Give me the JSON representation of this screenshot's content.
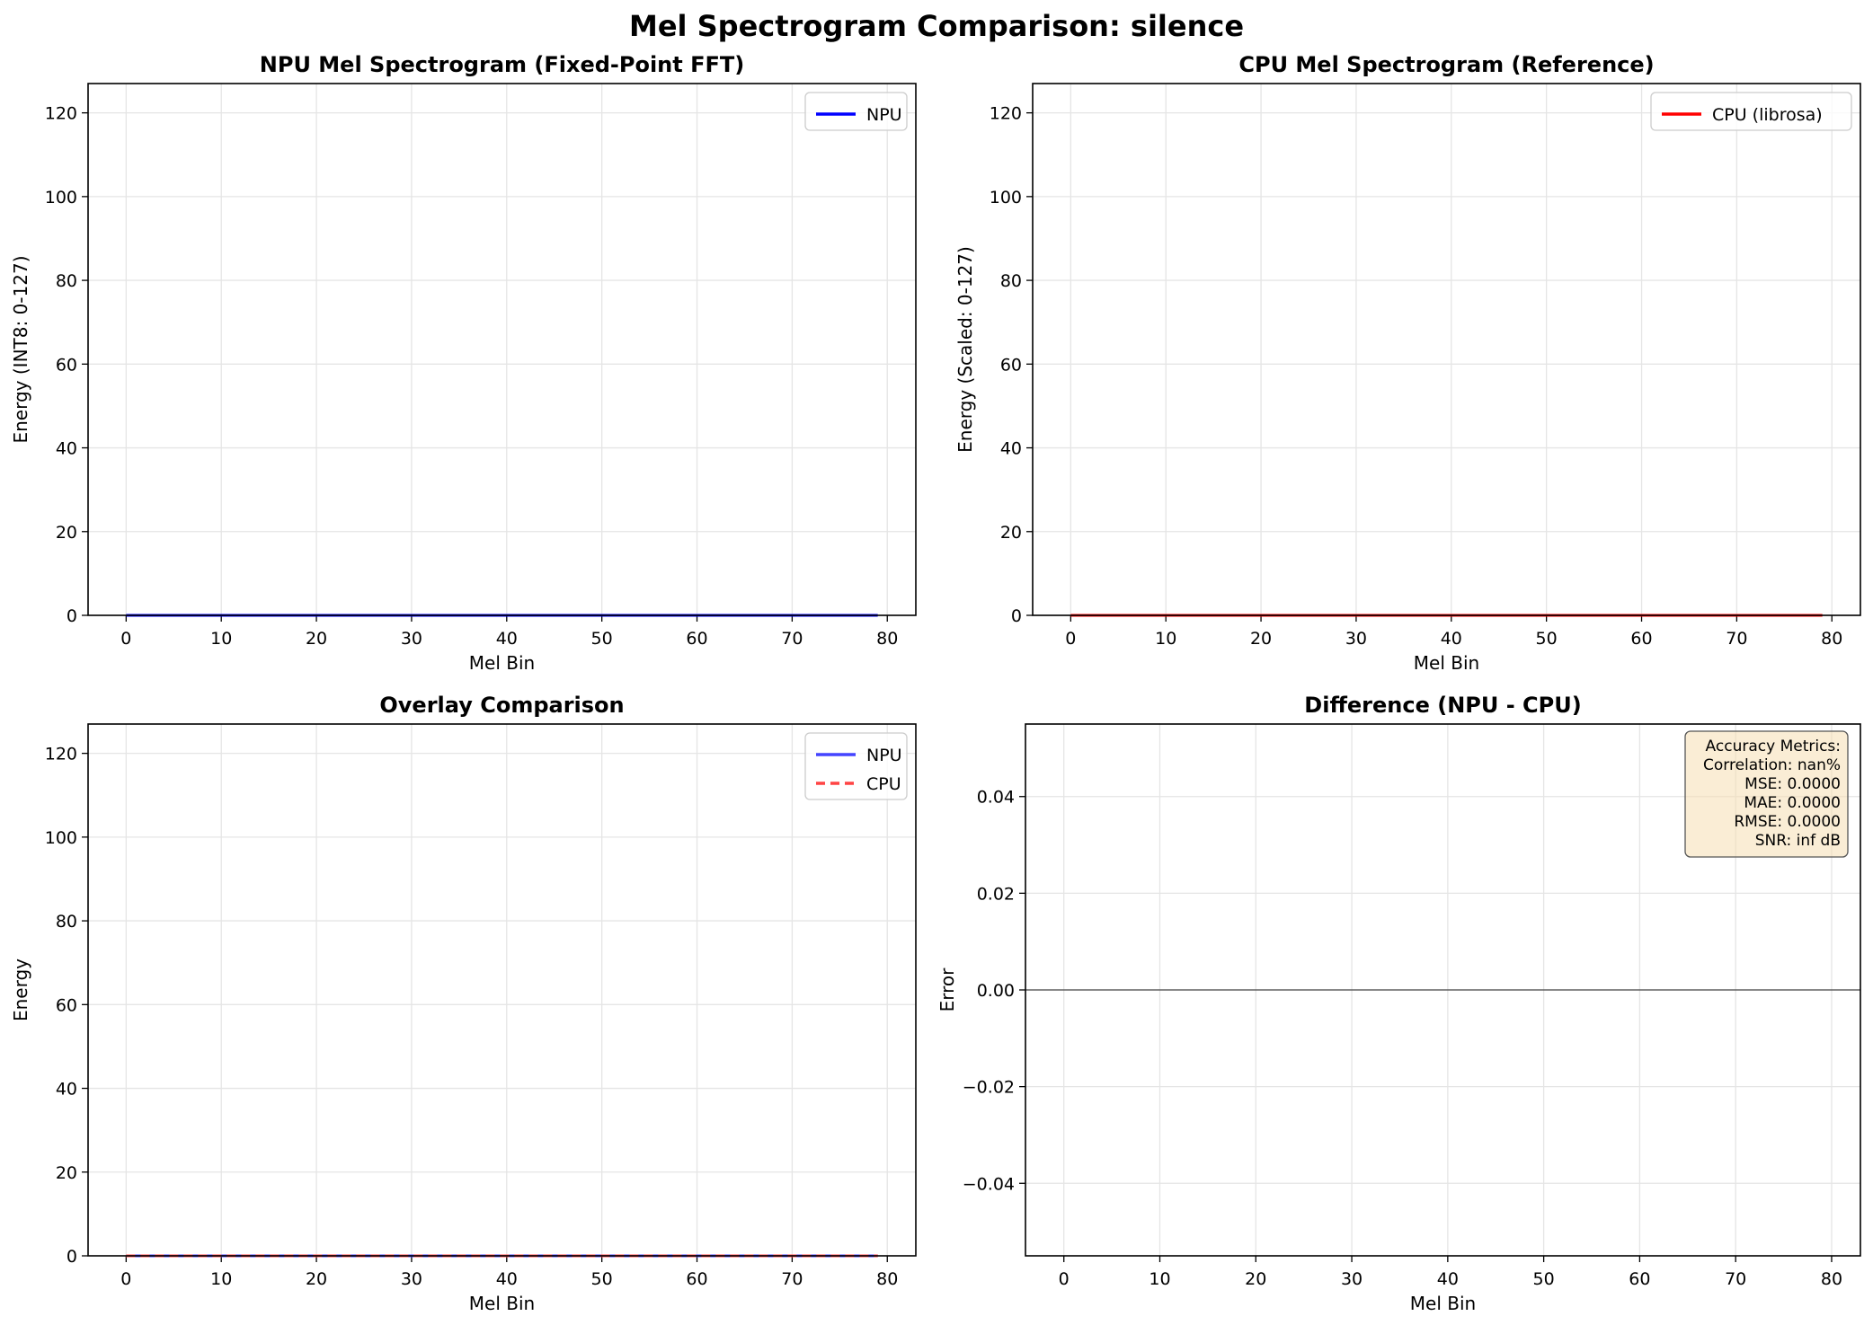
{
  "figure": {
    "suptitle": "Mel Spectrogram Comparison: silence"
  },
  "colors": {
    "npu": "#0000ff",
    "cpu": "#ff0000",
    "npu_overlay": "#4444ff",
    "cpu_overlay": "#ff4444",
    "grid": "#e5e5e5",
    "metrics_box_fill": "#f5deb3",
    "zero_line": "#000000"
  },
  "chart_data": [
    {
      "id": "npu",
      "type": "line",
      "title": "NPU Mel Spectrogram (Fixed-Point FFT)",
      "xlabel": "Mel Bin",
      "ylabel": "Energy (INT8: 0-127)",
      "xlim": [
        -4,
        83
      ],
      "ylim": [
        0,
        127
      ],
      "xticks": [
        0,
        10,
        20,
        30,
        40,
        50,
        60,
        70,
        80
      ],
      "yticks": [
        0,
        20,
        40,
        60,
        80,
        100,
        120
      ],
      "grid": true,
      "legend_position": "upper-right",
      "x_range": [
        0,
        79
      ],
      "series": [
        {
          "name": "NPU",
          "constant_value": 0,
          "color": "#0000ff",
          "style": "solid"
        }
      ]
    },
    {
      "id": "cpu",
      "type": "line",
      "title": "CPU Mel Spectrogram (Reference)",
      "xlabel": "Mel Bin",
      "ylabel": "Energy (Scaled: 0-127)",
      "xlim": [
        -4,
        83
      ],
      "ylim": [
        0,
        127
      ],
      "xticks": [
        0,
        10,
        20,
        30,
        40,
        50,
        60,
        70,
        80
      ],
      "yticks": [
        0,
        20,
        40,
        60,
        80,
        100,
        120
      ],
      "grid": true,
      "legend_position": "upper-right",
      "x_range": [
        0,
        79
      ],
      "series": [
        {
          "name": "CPU (librosa)",
          "constant_value": 0,
          "color": "#ff0000",
          "style": "solid"
        }
      ]
    },
    {
      "id": "overlay",
      "type": "line",
      "title": "Overlay Comparison",
      "xlabel": "Mel Bin",
      "ylabel": "Energy",
      "xlim": [
        -4,
        83
      ],
      "ylim": [
        0,
        127
      ],
      "xticks": [
        0,
        10,
        20,
        30,
        40,
        50,
        60,
        70,
        80
      ],
      "yticks": [
        0,
        20,
        40,
        60,
        80,
        100,
        120
      ],
      "grid": true,
      "legend_position": "upper-right",
      "x_range": [
        0,
        79
      ],
      "series": [
        {
          "name": "NPU",
          "constant_value": 0,
          "color": "#4444ff",
          "style": "solid"
        },
        {
          "name": "CPU",
          "constant_value": 0,
          "color": "#ff4444",
          "style": "dashed"
        }
      ]
    },
    {
      "id": "difference",
      "type": "bar",
      "title": "Difference (NPU - CPU)",
      "xlabel": "Mel Bin",
      "ylabel": "Error",
      "xlim": [
        -4,
        83
      ],
      "ylim": [
        -0.055,
        0.055
      ],
      "xticks": [
        0,
        10,
        20,
        30,
        40,
        50,
        60,
        70,
        80
      ],
      "yticks": [
        -0.04,
        -0.02,
        0.0,
        0.02,
        0.04
      ],
      "ytick_labels": [
        "−0.04",
        "−0.02",
        "0.00",
        "0.02",
        "0.04"
      ],
      "grid": true,
      "x_range": [
        0,
        79
      ],
      "series": [
        {
          "name": "",
          "constant_value": 0
        }
      ],
      "zero_line": 0,
      "metrics_box": {
        "position": "top-right",
        "lines": [
          "Accuracy Metrics:",
          "Correlation: nan%",
          "MSE: 0.0000",
          "MAE: 0.0000",
          "RMSE: 0.0000",
          "SNR: inf dB"
        ]
      }
    }
  ]
}
